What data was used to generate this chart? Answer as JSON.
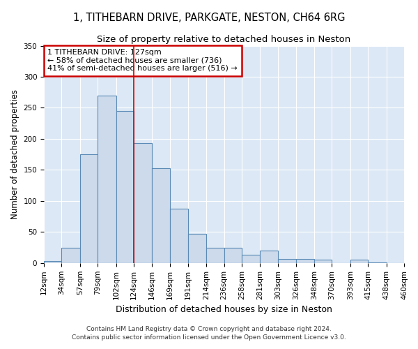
{
  "title1": "1, TITHEBARN DRIVE, PARKGATE, NESTON, CH64 6RG",
  "title2": "Size of property relative to detached houses in Neston",
  "xlabel": "Distribution of detached houses by size in Neston",
  "ylabel": "Number of detached properties",
  "footer1": "Contains HM Land Registry data © Crown copyright and database right 2024.",
  "footer2": "Contains public sector information licensed under the Open Government Licence v3.0.",
  "annotation_line1": "1 TITHEBARN DRIVE: 127sqm",
  "annotation_line2": "← 58% of detached houses are smaller (736)",
  "annotation_line3": "41% of semi-detached houses are larger (516) →",
  "bin_edges": [
    12,
    34,
    57,
    79,
    102,
    124,
    146,
    169,
    191,
    214,
    236,
    258,
    281,
    303,
    326,
    348,
    370,
    393,
    415,
    438,
    460
  ],
  "bar_heights": [
    3,
    25,
    175,
    270,
    245,
    193,
    153,
    88,
    47,
    25,
    25,
    13,
    20,
    6,
    6,
    5,
    0,
    5,
    1,
    0
  ],
  "bar_color": "#ccdaeb",
  "bar_edge_color": "#5a8ab5",
  "vline_color": "#cc0000",
  "vline_x": 124,
  "bg_color": "#dce8f5",
  "grid_color": "#ffffff",
  "ylim": [
    0,
    350
  ],
  "yticks": [
    0,
    50,
    100,
    150,
    200,
    250,
    300,
    350
  ],
  "annotation_box_color": "#cc0000",
  "title_fontsize": 10.5,
  "subtitle_fontsize": 9.5,
  "ylabel_fontsize": 8.5,
  "xlabel_fontsize": 9,
  "tick_fontsize": 7.5,
  "ann_fontsize": 8
}
